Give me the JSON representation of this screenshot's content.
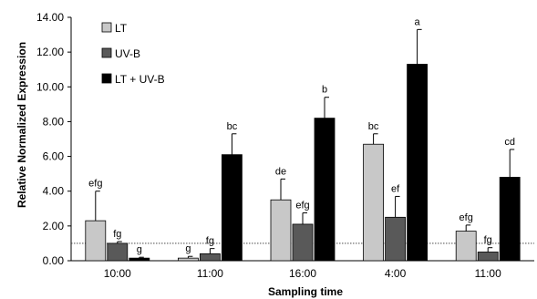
{
  "chart_data": {
    "type": "bar",
    "title": "",
    "xlabel": "Sampling time",
    "ylabel": "Relative Normalized Expression",
    "ylim": [
      0,
      14
    ],
    "yticks": [
      "0.00",
      "2.00",
      "4.00",
      "6.00",
      "8.00",
      "10.00",
      "12.00",
      "14.00"
    ],
    "categories": [
      "10:00",
      "11:00",
      "16:00",
      "4:00",
      "11:00"
    ],
    "reference_line": 1.0,
    "legend_position": "top-left",
    "series": [
      {
        "name": "LT",
        "color": "#c8c8c8",
        "values": [
          2.3,
          0.15,
          3.5,
          6.7,
          1.7
        ],
        "errors": [
          1.7,
          0.1,
          1.2,
          0.6,
          0.35
        ],
        "labels": [
          "efg",
          "g",
          "de",
          "bc",
          "efg"
        ]
      },
      {
        "name": "UV-B",
        "color": "#595959",
        "values": [
          1.0,
          0.4,
          2.1,
          2.5,
          0.5
        ],
        "errors": [
          0.1,
          0.3,
          0.65,
          1.2,
          0.25
        ],
        "labels": [
          "fg",
          "fg",
          "efg",
          "ef",
          "fg"
        ]
      },
      {
        "name": "LT + UV-B",
        "color": "#000000",
        "values": [
          0.15,
          6.1,
          8.2,
          11.3,
          4.8
        ],
        "errors": [
          0.05,
          1.2,
          1.2,
          2.0,
          1.6
        ],
        "labels": [
          "g",
          "bc",
          "b",
          "a",
          "cd"
        ]
      }
    ]
  }
}
